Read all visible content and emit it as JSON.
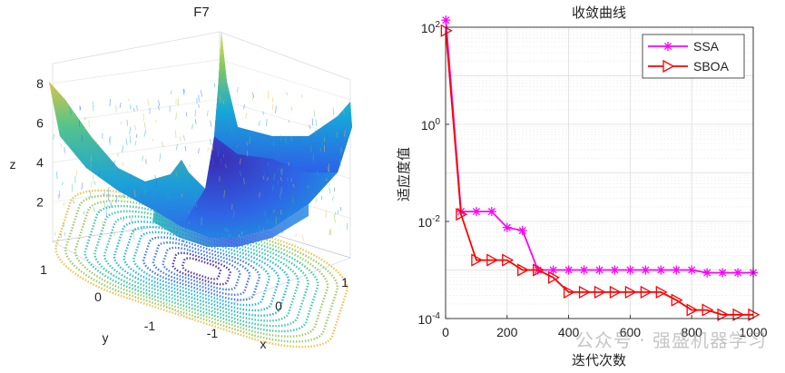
{
  "chart_data": [
    {
      "type": "surface3d",
      "title": "F7",
      "xlabel": "x",
      "ylabel": "y",
      "zlabel": "z",
      "x_ticks": [
        "-1",
        "0",
        "1"
      ],
      "y_ticks": [
        "-1",
        "0",
        "1"
      ],
      "z_ticks": [
        "2",
        "4",
        "6",
        "8"
      ],
      "xlim": [
        -1.28,
        1.28
      ],
      "ylim": [
        -1.28,
        1.28
      ],
      "zlim": [
        0,
        9
      ],
      "colormap": [
        "#3e26a8",
        "#2c6cf5",
        "#12afda",
        "#2cc59b",
        "#8dcb55",
        "#f6ba3c",
        "#f9fb15"
      ]
    },
    {
      "type": "line",
      "title": "收敛曲线",
      "xlabel": "迭代次数",
      "ylabel": "适应度值",
      "yscale": "log",
      "xlim": [
        0,
        1000
      ],
      "ylim": [
        0.0001,
        100
      ],
      "x_ticks": [
        "0",
        "200",
        "400",
        "600",
        "800",
        "1000"
      ],
      "y_ticks": [
        {
          "base": "10",
          "exp": "2",
          "value": 100
        },
        {
          "base": "10",
          "exp": "0",
          "value": 1
        },
        {
          "base": "10",
          "exp": "-2",
          "value": 0.01
        },
        {
          "base": "10",
          "exp": "-4",
          "value": 0.0001
        }
      ],
      "legend_position": "top-right",
      "series": [
        {
          "name": "SSA",
          "color": "#ff00ff",
          "marker": "asterisk",
          "x": [
            1,
            50,
            100,
            150,
            200,
            250,
            300,
            350,
            400,
            450,
            500,
            550,
            600,
            650,
            700,
            750,
            800,
            850,
            900,
            950,
            1000
          ],
          "y": [
            140,
            0.016,
            0.016,
            0.016,
            0.0075,
            0.0065,
            0.001,
            0.001,
            0.001,
            0.001,
            0.001,
            0.001,
            0.001,
            0.001,
            0.001,
            0.001,
            0.001,
            0.00088,
            0.00088,
            0.00088,
            0.00088
          ]
        },
        {
          "name": "SBOA",
          "color": "#ff0000",
          "marker": "triangle-right",
          "x": [
            1,
            50,
            100,
            150,
            200,
            250,
            300,
            350,
            400,
            450,
            500,
            550,
            600,
            650,
            700,
            750,
            800,
            850,
            900,
            950,
            1000
          ],
          "y": [
            85,
            0.014,
            0.0016,
            0.0016,
            0.0016,
            0.001,
            0.001,
            0.0007,
            0.00035,
            0.00035,
            0.00035,
            0.00035,
            0.00035,
            0.00035,
            0.00035,
            0.00024,
            0.00015,
            0.00015,
            0.00012,
            0.00012,
            0.00012
          ]
        }
      ]
    }
  ],
  "watermark": "公众号 · 强盛机器学习"
}
